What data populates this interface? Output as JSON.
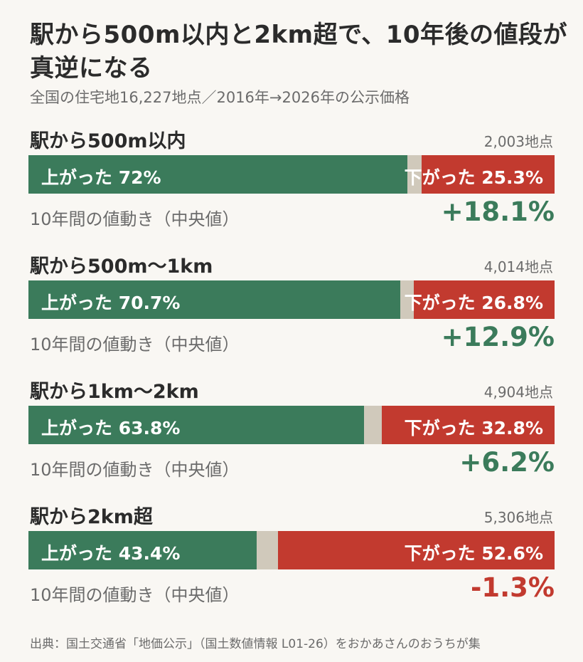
{
  "colors": {
    "up": "#3b7b5b",
    "down": "#c23a2f",
    "neutral": "#d0c9bb",
    "background": "#f9f7f3"
  },
  "title": "駅から500m以内と2km超で、10年後の値段が真逆になる",
  "subtitle": "全国の住宅地16,227地点／2016年→2026年の公示価格",
  "source": "出典：国土交通省「地価公示」（国土数値情報 L01-26）をおかあさんのおうちが集",
  "chart_data": {
    "type": "bar",
    "categories": [
      "駅から500m以内",
      "駅から500m〜1km",
      "駅から1km〜2km",
      "駅から2km超"
    ],
    "counts": [
      "2,003地点",
      "4,014地点",
      "4,904地点",
      "5,306地点"
    ],
    "series": [
      {
        "name": "上がった",
        "values": [
          72,
          70.7,
          63.8,
          43.4
        ],
        "labels": [
          "上がった 72%",
          "上がった 70.7%",
          "上がった 63.8%",
          "上がった 43.4%"
        ]
      },
      {
        "name": "下がった",
        "values": [
          25.3,
          26.8,
          32.8,
          52.6
        ],
        "labels": [
          "下がった 25.3%",
          "下がった 26.8%",
          "下がった 32.8%",
          "下がった 52.6%"
        ]
      }
    ],
    "median_label": "10年間の値動き（中央値）",
    "median_change": [
      18.1,
      12.9,
      6.2,
      -1.3
    ],
    "median_change_labels": [
      "+18.1%",
      "+12.9%",
      "+6.2%",
      "-1.3%"
    ],
    "ylim": [
      0,
      100
    ]
  }
}
